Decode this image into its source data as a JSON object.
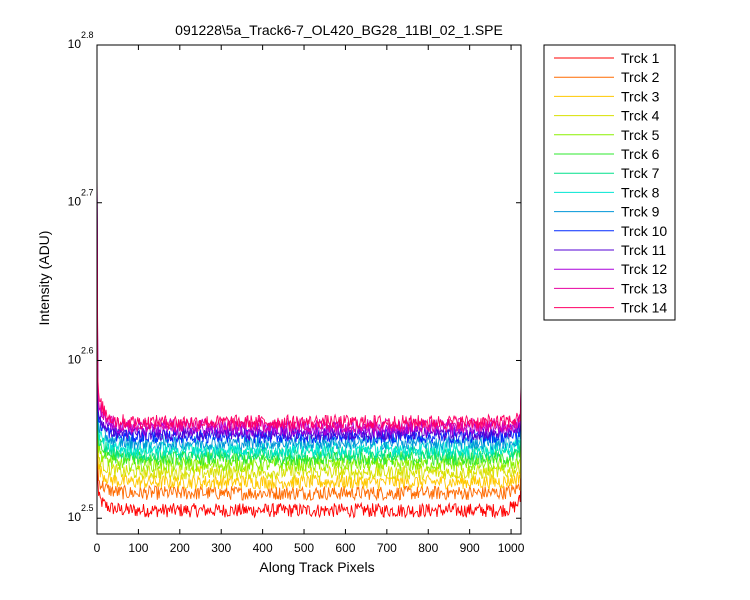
{
  "chart_data": {
    "type": "line",
    "title": "091228\\5a_Track6-7_OL420_BG28_11Bl_02_1.SPE",
    "xlabel": "Along Track Pixels",
    "ylabel": "Intensity (ADU)",
    "xlim": [
      0,
      1024
    ],
    "ylim_log10": [
      2.49,
      2.8
    ],
    "yscale": "log",
    "x_ticks": [
      "0",
      "100",
      "200",
      "300",
      "400",
      "500",
      "600",
      "700",
      "800",
      "900",
      "1000"
    ],
    "y_ticks": [
      {
        "base": "10",
        "exp": "2.5",
        "log10": 2.5
      },
      {
        "base": "10",
        "exp": "2.6",
        "log10": 2.6
      },
      {
        "base": "10",
        "exp": "2.7",
        "log10": 2.7
      },
      {
        "base": "10",
        "exp": "2.8",
        "log10": 2.8
      }
    ],
    "grid": false,
    "legend_position": "outside-right",
    "series": [
      {
        "name": "Trck 1",
        "color": "#ff0000",
        "baseline_log10": 2.505,
        "edge_start_log10": 2.515,
        "edge_end_log10": 2.513
      },
      {
        "name": "Trck 2",
        "color": "#ff6a00",
        "baseline_log10": 2.516,
        "edge_start_log10": 2.526,
        "edge_end_log10": 2.522
      },
      {
        "name": "Trck 3",
        "color": "#ffc800",
        "baseline_log10": 2.523,
        "edge_start_log10": 2.534,
        "edge_end_log10": 2.528
      },
      {
        "name": "Trck 4",
        "color": "#d8e000",
        "baseline_log10": 2.529,
        "edge_start_log10": 2.541,
        "edge_end_log10": 2.534
      },
      {
        "name": "Trck 5",
        "color": "#8cf000",
        "baseline_log10": 2.534,
        "edge_start_log10": 2.546,
        "edge_end_log10": 2.538
      },
      {
        "name": "Trck 6",
        "color": "#2ee82e",
        "baseline_log10": 2.538,
        "edge_start_log10": 2.55,
        "edge_end_log10": 2.542
      },
      {
        "name": "Trck 7",
        "color": "#00e08c",
        "baseline_log10": 2.541,
        "edge_start_log10": 2.554,
        "edge_end_log10": 2.546
      },
      {
        "name": "Trck 8",
        "color": "#00e6d2",
        "baseline_log10": 2.544,
        "edge_start_log10": 2.557,
        "edge_end_log10": 2.549
      },
      {
        "name": "Trck 9",
        "color": "#0096d8",
        "baseline_log10": 2.548,
        "edge_start_log10": 2.561,
        "edge_end_log10": 2.552
      },
      {
        "name": "Trck 10",
        "color": "#0028ff",
        "baseline_log10": 2.552,
        "edge_start_log10": 2.565,
        "edge_end_log10": 2.556
      },
      {
        "name": "Trck 11",
        "color": "#5500d4",
        "baseline_log10": 2.554,
        "edge_start_log10": 2.568,
        "edge_end_log10": 2.558
      },
      {
        "name": "Trck 12",
        "color": "#aa00dc",
        "baseline_log10": 2.557,
        "edge_start_log10": 2.572,
        "edge_end_log10": 2.561
      },
      {
        "name": "Trck 13",
        "color": "#e600a0",
        "baseline_log10": 2.559,
        "edge_start_log10": 2.576,
        "edge_end_log10": 2.563
      },
      {
        "name": "Trck 14",
        "color": "#ff0064",
        "baseline_log10": 2.561,
        "edge_start_log10": 2.58,
        "edge_end_log10": 2.565
      }
    ]
  }
}
